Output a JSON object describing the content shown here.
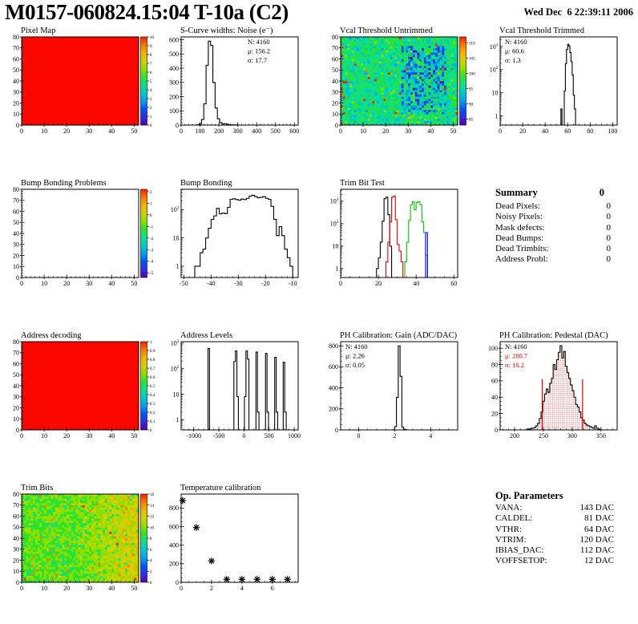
{
  "header": {
    "title": "M0157-060824.15:04 T-10a (C2)",
    "datetime": "Wed Dec  6 22:39:11 2006"
  },
  "summary": {
    "title": "Summary",
    "total": "0",
    "rows": [
      {
        "label": "Dead Pixels:",
        "value": "0"
      },
      {
        "label": "Noisy Pixels:",
        "value": "0"
      },
      {
        "label": "Mask defects:",
        "value": "0"
      },
      {
        "label": "Dead Bumps:",
        "value": "0"
      },
      {
        "label": "Dead Trimbits:",
        "value": "0"
      },
      {
        "label": "Address Probl:",
        "value": "0"
      }
    ]
  },
  "op_parameters": {
    "title": "Op. Parameters",
    "rows": [
      {
        "label": "VANA:",
        "value": "143 DAC"
      },
      {
        "label": "CALDEL:",
        "value": "81 DAC"
      },
      {
        "label": "VTHR:",
        "value": "64 DAC"
      },
      {
        "label": "VTRIM:",
        "value": "120 DAC"
      },
      {
        "label": "IBIAS_DAC:",
        "value": "112 DAC"
      },
      {
        "label": "VOFFSETOP:",
        "value": "12 DAC"
      }
    ]
  },
  "colors": {
    "solid_red": "#fb0700",
    "hist_red": "#e80000",
    "hist_green": "#00c800",
    "hist_blue": "#0000e8",
    "palette": [
      "#5a00b0",
      "#2f2fe0",
      "#0055f4",
      "#0b9df0",
      "#00c8c8",
      "#0be08c",
      "#2ce22c",
      "#8ce000",
      "#d2d200",
      "#f0b400",
      "#fa7800",
      "#fa1e00"
    ]
  },
  "chart_data": [
    {
      "id": "pixel-map",
      "row": 0,
      "col": 0,
      "type": "heatmap",
      "mode": "solid",
      "title": "Pixel Map",
      "x_range": [
        0,
        52
      ],
      "y_range": [
        0,
        80
      ],
      "x_ticks": [
        0,
        10,
        20,
        30,
        40,
        50
      ],
      "y_ticks": [
        0,
        10,
        20,
        30,
        40,
        50,
        60,
        70,
        80
      ],
      "x_minor": 2,
      "y_minor": 2,
      "z_range": [
        0,
        10
      ],
      "colorbar_labels": [
        "10",
        "9",
        "8",
        "7",
        "6",
        "5",
        "4",
        "3",
        "2",
        "1",
        "0"
      ]
    },
    {
      "id": "scurve-noise",
      "row": 0,
      "col": 1,
      "type": "histogram",
      "yscale": "linear",
      "title": "S-Curve widths: Noise (e⁻)",
      "x_range": [
        0,
        620
      ],
      "x_ticks": [
        0,
        100,
        200,
        300,
        400,
        500,
        600
      ],
      "x_minor": 20,
      "y_range": [
        0,
        620
      ],
      "y_ticks": [
        0,
        100,
        200,
        300,
        400,
        500,
        600
      ],
      "y_minor": 20,
      "series": [
        {
          "color": "#000000",
          "x0": 84,
          "bw": 12,
          "y": [
            2,
            8,
            40,
            150,
            420,
            590,
            560,
            300,
            120,
            45,
            18,
            8,
            10,
            6,
            3,
            2,
            1,
            1
          ]
        }
      ],
      "stats": {
        "x": 110,
        "lines": [
          {
            "t": "N: 4160",
            "c": "#000000"
          },
          {
            "t": "μ: 156.2",
            "c": "#000000"
          },
          {
            "t": "σ: 17.7",
            "c": "#000000"
          }
        ]
      }
    },
    {
      "id": "vcal-untrimmed",
      "row": 0,
      "col": 2,
      "type": "heatmap",
      "mode": "noise",
      "noise": "vcal",
      "seed": 77,
      "title": "Vcal Threshold Untrimmed",
      "x_range": [
        0,
        52
      ],
      "y_range": [
        0,
        80
      ],
      "x_ticks": [
        0,
        10,
        20,
        30,
        40,
        50
      ],
      "y_ticks": [
        0,
        10,
        20,
        30,
        40,
        50,
        60,
        70,
        80
      ],
      "x_minor": 2,
      "y_minor": 2,
      "z_range": [
        83,
        112
      ],
      "colorbar_labels": [
        "110",
        "105",
        "100",
        "95",
        "90",
        "85"
      ]
    },
    {
      "id": "vcal-trimmed",
      "row": 0,
      "col": 3,
      "type": "histogram",
      "yscale": "log",
      "title": "Vcal Threshold Trimmed",
      "x_range": [
        0,
        104
      ],
      "x_ticks": [
        0,
        20,
        40,
        60,
        80,
        100
      ],
      "x_minor": 5,
      "y_range": [
        0.4,
        2600
      ],
      "series": [
        {
          "color": "#000000",
          "x0": 54,
          "bw": 1,
          "y": [
            2,
            0,
            0,
            12,
            180,
            750,
            1250,
            1050,
            550,
            220,
            60,
            8,
            2
          ]
        }
      ],
      "stats": {
        "x": 33,
        "lines": [
          {
            "t": "N: 4160",
            "c": "#000000"
          },
          {
            "t": "μ: 60.6",
            "c": "#000000"
          },
          {
            "t": "σ:  1.3",
            "c": "#000000"
          }
        ]
      }
    },
    {
      "id": "bump-problems",
      "row": 1,
      "col": 0,
      "type": "heatmap",
      "mode": "empty",
      "title": "Bump Bonding Problems",
      "x_range": [
        0,
        52
      ],
      "y_range": [
        0,
        80
      ],
      "x_ticks": [
        0,
        10,
        20,
        30,
        40,
        50
      ],
      "y_ticks": [
        0,
        10,
        20,
        30,
        40,
        50,
        60,
        70,
        80
      ],
      "x_minor": 2,
      "y_minor": 2,
      "z_range": [
        -5.4,
        2.2
      ],
      "colorbar_labels": [
        "2",
        "1",
        "0",
        "-1",
        "-2",
        "-3",
        "-4",
        "-5"
      ]
    },
    {
      "id": "bump-bonding",
      "row": 1,
      "col": 1,
      "type": "histogram",
      "yscale": "log",
      "title": "Bump Bonding",
      "x_range": [
        -51,
        -8
      ],
      "x_ticks": [
        -50,
        -40,
        -30,
        -20,
        -10
      ],
      "x_minor": 2,
      "y_range": [
        0.4,
        520
      ],
      "series": [
        {
          "color": "#000000",
          "x0": -46,
          "bw": 1,
          "y": [
            1,
            1,
            3,
            4,
            10,
            22,
            45,
            60,
            110,
            70,
            75,
            72,
            120,
            230,
            240,
            225,
            215,
            235,
            225,
            250,
            300,
            320,
            285,
            260,
            270,
            285,
            250,
            230,
            130,
            45,
            12,
            25,
            12,
            4,
            2,
            1
          ]
        }
      ]
    },
    {
      "id": "trim-bit-test",
      "row": 1,
      "col": 2,
      "type": "histogram",
      "yscale": "log",
      "title": "Trim Bit Test",
      "x_range": [
        0,
        62
      ],
      "x_ticks": [
        0,
        20,
        40,
        60
      ],
      "x_minor": 5,
      "y_range": [
        0.4,
        3400
      ],
      "series": [
        {
          "color": "#000000",
          "x0": 19,
          "bw": 1,
          "y": [
            1,
            3,
            15,
            130,
            1300,
            1500,
            250,
            10
          ]
        },
        {
          "color": "#e80000",
          "x0": 24,
          "bw": 1,
          "y": [
            2,
            15,
            120,
            1500,
            1700,
            150,
            12,
            6,
            2
          ]
        },
        {
          "color": "#00c800",
          "x0": 34,
          "bw": 1,
          "ext": true,
          "y": [
            2,
            15,
            140,
            700,
            950,
            420,
            880,
            950,
            700,
            120,
            40,
            4
          ]
        },
        {
          "color": "#0000e8",
          "x0": 45,
          "bw": 1,
          "y": [
            40
          ]
        }
      ]
    },
    {
      "id": "address-decoding",
      "row": 2,
      "col": 0,
      "type": "heatmap",
      "mode": "solid",
      "title": "Address decoding",
      "x_range": [
        0,
        52
      ],
      "y_range": [
        0,
        80
      ],
      "x_ticks": [
        0,
        10,
        20,
        30,
        40,
        50
      ],
      "y_ticks": [
        0,
        10,
        20,
        30,
        40,
        50,
        60,
        70,
        80
      ],
      "x_minor": 2,
      "y_minor": 2,
      "z_range": [
        0,
        1
      ],
      "colorbar_labels": [
        "1",
        "0.9",
        "0.8",
        "0.7",
        "0.6",
        "0.5",
        "0.4",
        "0.3",
        "0.2",
        "0.1",
        "0"
      ]
    },
    {
      "id": "address-levels",
      "row": 2,
      "col": 1,
      "type": "histogram",
      "yscale": "log",
      "title": "Address Levels",
      "x_range": [
        -1250,
        1080
      ],
      "x_ticks": [
        -1000,
        -500,
        0,
        500,
        1000
      ],
      "x_minor": 100,
      "y_range": [
        0.4,
        1150
      ],
      "series": [
        {
          "color": "#000000",
          "bw": 30,
          "x": [
            -715,
            -200,
            -170,
            -140,
            10,
            40,
            70,
            240,
            270,
            430,
            460,
            612,
            642,
            782,
            812
          ],
          "y": [
            620,
            190,
            500,
            8,
            8,
            500,
            240,
            450,
            2,
            400,
            2,
            280,
            2,
            180,
            2
          ]
        }
      ]
    },
    {
      "id": "ph-gain",
      "row": 2,
      "col": 2,
      "type": "histogram",
      "yscale": "linear",
      "title": "PH Calibration: Gain (ADC/DAC)",
      "x_range": [
        -1,
        5.5
      ],
      "x_ticks": [
        0,
        2,
        4
      ],
      "x_minor": 0.5,
      "y_range": [
        0,
        840
      ],
      "y_ticks": [
        0,
        200,
        400,
        600,
        800
      ],
      "y_minor": 50,
      "series": [
        {
          "color": "#000000",
          "x0": 1.9,
          "bw": 0.1,
          "y": [
            2,
            30,
            310,
            800,
            510,
            25,
            6,
            2
          ]
        }
      ],
      "stats": {
        "x": 33,
        "lines": [
          {
            "t": "N: 4160",
            "c": "#000000"
          },
          {
            "t": "μ: 2.26",
            "c": "#000000"
          },
          {
            "t": "σ: 0.05",
            "c": "#000000"
          }
        ]
      }
    },
    {
      "id": "ph-pedestal",
      "row": 2,
      "col": 3,
      "type": "histogram",
      "yscale": "linear",
      "title": "PH Calibration: Pedestal (DAC)",
      "x_range": [
        175,
        378
      ],
      "x_ticks": [
        200,
        250,
        300,
        350
      ],
      "x_minor": 10,
      "y_range": [
        0,
        108
      ],
      "y_ticks": [
        0,
        20,
        40,
        60,
        80,
        100
      ],
      "y_minor": 5,
      "series": [
        {
          "color": "#000000",
          "x0": 222,
          "bw": 3,
          "fill": "red-dots",
          "y": [
            1,
            1,
            2,
            2,
            3,
            5,
            8,
            14,
            22,
            35,
            44,
            50,
            46,
            57,
            63,
            80,
            74,
            86,
            95,
            103,
            88,
            96,
            78,
            70,
            63,
            55,
            48,
            40,
            31,
            28,
            22,
            15,
            12,
            8,
            6,
            5,
            4,
            3,
            2,
            5,
            2,
            1
          ]
        }
      ],
      "vlines": [
        {
          "x": 248,
          "y": 62
        },
        {
          "x": 318,
          "y": 62
        }
      ],
      "stats": {
        "x": 33,
        "lines": [
          {
            "t": "N: 4160",
            "c": "#000000"
          },
          {
            "t": "μ: 280.7",
            "c": "#e00000"
          },
          {
            "t": "σ: 16.2",
            "c": "#e00000"
          }
        ]
      }
    },
    {
      "id": "trim-bits",
      "row": 3,
      "col": 0,
      "type": "heatmap",
      "mode": "noise",
      "noise": "trim",
      "seed": 13,
      "title": "Trim Bits",
      "x_range": [
        0,
        52
      ],
      "y_range": [
        0,
        80
      ],
      "x_ticks": [
        0,
        10,
        20,
        30,
        40,
        50
      ],
      "y_ticks": [
        0,
        10,
        20,
        30,
        40,
        50,
        60,
        70,
        80
      ],
      "x_minor": 2,
      "y_minor": 2,
      "z_range": [
        0,
        16
      ],
      "colorbar_labels": [
        "16",
        "14",
        "12",
        "10",
        "8",
        "6",
        "4",
        "2",
        "0"
      ]
    },
    {
      "id": "temp-calibration",
      "row": 3,
      "col": 1,
      "type": "scatter",
      "yscale": "linear",
      "title": "Temperature calibration",
      "x_range": [
        0,
        7.7
      ],
      "x_ticks": [
        0,
        2,
        4,
        6
      ],
      "x_minor": 0.5,
      "y_range": [
        0,
        950
      ],
      "y_ticks": [
        0,
        200,
        400,
        600,
        800
      ],
      "y_minor": 50,
      "marker": "asterisk",
      "points": [
        [
          0.1,
          880
        ],
        [
          1,
          590
        ],
        [
          2,
          230
        ],
        [
          3,
          32
        ],
        [
          4,
          32
        ],
        [
          5,
          32
        ],
        [
          6,
          32
        ],
        [
          7,
          32
        ]
      ]
    }
  ]
}
